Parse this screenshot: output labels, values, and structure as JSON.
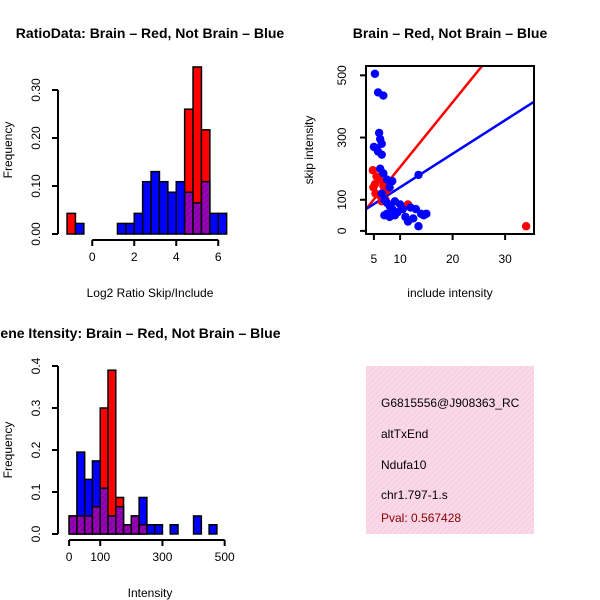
{
  "colors": {
    "brain": "#ff0000",
    "not_brain": "#0000ff",
    "overlap": "#9a00b8",
    "overlap_hatch": "#6a0090",
    "axis": "#000000",
    "info_bg": "#fad8e8",
    "pval": "#8b0000"
  },
  "chart_data": [
    {
      "id": "ratio-hist",
      "type": "bar",
      "title": "RatioData: Brain – Red, Not Brain – Blue",
      "xlabel": "Log2 Ratio Skip/Include",
      "ylabel": "Frequency",
      "xlim": [
        -1.25,
        6.75
      ],
      "ylim": [
        0,
        0.35
      ],
      "xticks": [
        0,
        2,
        4,
        6
      ],
      "yticks": [
        0.0,
        0.1,
        0.2,
        0.3
      ],
      "ytick_labels": [
        "0.00",
        "0.10",
        "0.20",
        "0.30"
      ],
      "bin_width": 0.4,
      "bin_starts": [
        -1.2,
        -0.8,
        -0.4,
        0.0,
        0.4,
        0.8,
        1.2,
        1.6,
        2.0,
        2.4,
        2.8,
        3.2,
        3.6,
        4.0,
        4.4,
        4.8,
        5.2,
        5.6,
        6.0,
        6.4
      ],
      "series": [
        {
          "name": "Brain",
          "color": "red",
          "values": [
            0.043,
            0,
            0,
            0,
            0,
            0,
            0,
            0,
            0,
            0,
            0,
            0,
            0,
            0,
            0.26,
            0.348,
            0.217,
            0,
            0,
            0
          ]
        },
        {
          "name": "Not Brain",
          "color": "blue",
          "values": [
            0,
            0.022,
            0,
            0,
            0,
            0,
            0.022,
            0.022,
            0.043,
            0.109,
            0.13,
            0.109,
            0.087,
            0.109,
            0.087,
            0.065,
            0.109,
            0.043,
            0.043,
            0
          ]
        }
      ]
    },
    {
      "id": "intensity-scatter",
      "type": "scatter",
      "title": "Brain – Red, Not Brain – Blue",
      "xlabel": "include intensity",
      "ylabel": "skip intensity",
      "xlim": [
        3.5,
        35.5
      ],
      "ylim": [
        -10,
        530
      ],
      "xticks": [
        5,
        10,
        20,
        30
      ],
      "yticks": [
        0,
        100,
        300,
        500
      ],
      "series": [
        {
          "name": "Brain",
          "color": "red",
          "points": [
            [
              4.8,
              195
            ],
            [
              4.9,
              140
            ],
            [
              5.2,
              150
            ],
            [
              5.5,
              175
            ],
            [
              5.3,
              120
            ],
            [
              6.0,
              165
            ],
            [
              6.3,
              110
            ],
            [
              6.8,
              145
            ],
            [
              7.0,
              150
            ],
            [
              7.5,
              130
            ],
            [
              6.5,
              95
            ],
            [
              7.2,
              100
            ],
            [
              11.5,
              85
            ],
            [
              34.0,
              15
            ]
          ]
        },
        {
          "name": "Not Brain",
          "color": "blue",
          "points": [
            [
              5.2,
              505
            ],
            [
              5.8,
              445
            ],
            [
              6.8,
              435
            ],
            [
              5.0,
              270
            ],
            [
              5.5,
              265
            ],
            [
              6.0,
              315
            ],
            [
              6.2,
              295
            ],
            [
              6.5,
              280
            ],
            [
              5.8,
              255
            ],
            [
              6.5,
              245
            ],
            [
              6.2,
              200
            ],
            [
              6.8,
              185
            ],
            [
              7.5,
              165
            ],
            [
              8.0,
              140
            ],
            [
              8.5,
              160
            ],
            [
              6.5,
              120
            ],
            [
              7.0,
              100
            ],
            [
              7.5,
              90
            ],
            [
              8.0,
              80
            ],
            [
              8.5,
              70
            ],
            [
              9.0,
              95
            ],
            [
              9.5,
              60
            ],
            [
              10.0,
              85
            ],
            [
              10.5,
              70
            ],
            [
              11.0,
              45
            ],
            [
              11.5,
              30
            ],
            [
              7.0,
              50
            ],
            [
              7.5,
              55
            ],
            [
              8.0,
              45
            ],
            [
              9.0,
              50
            ],
            [
              12.0,
              75
            ],
            [
              13.5,
              180
            ],
            [
              13.0,
              70
            ],
            [
              14.0,
              55
            ],
            [
              14.5,
              50
            ],
            [
              13.5,
              15
            ],
            [
              15.0,
              55
            ],
            [
              12.5,
              40
            ]
          ]
        }
      ],
      "lines": [
        {
          "name": "Brain fit",
          "color": "red",
          "x": [
            3.5,
            25.6
          ],
          "y": [
            70,
            530
          ]
        },
        {
          "name": "Not Brain fit",
          "color": "blue",
          "x": [
            3.5,
            35.5
          ],
          "y": [
            70,
            415
          ]
        }
      ]
    },
    {
      "id": "intensity-hist",
      "type": "bar",
      "title": "Gene Itensity: Brain – Red, Not Brain – Blue",
      "xlabel": "Intensity",
      "ylabel": "Frequency",
      "xlim": [
        -10,
        530
      ],
      "ylim": [
        0,
        0.4
      ],
      "xticks": [
        0,
        100,
        300,
        500
      ],
      "yticks": [
        0.0,
        0.1,
        0.2,
        0.3,
        0.4
      ],
      "ytick_labels": [
        "0.0",
        "0.1",
        "0.2",
        "0.3",
        "0.4"
      ],
      "bin_width": 25,
      "bin_starts": [
        0,
        25,
        50,
        75,
        100,
        125,
        150,
        175,
        200,
        225,
        250,
        275,
        300,
        325,
        350,
        375,
        400,
        425,
        450,
        475
      ],
      "series": [
        {
          "name": "Brain",
          "color": "red",
          "values": [
            0.043,
            0.043,
            0.043,
            0.065,
            0.3,
            0.39,
            0.087,
            0.022,
            0.043,
            0.022,
            0,
            0,
            0,
            0,
            0,
            0,
            0,
            0,
            0,
            0
          ]
        },
        {
          "name": "Not Brain",
          "color": "blue",
          "values": [
            0.043,
            0.195,
            0.13,
            0.174,
            0.109,
            0.043,
            0.065,
            0.022,
            0.043,
            0.087,
            0.022,
            0.022,
            0,
            0.022,
            0,
            0,
            0.043,
            0,
            0.022,
            0
          ]
        }
      ]
    }
  ],
  "info_box": {
    "id": "G6815556@J908363_RC",
    "event_type": "altTxEnd",
    "gene": "Ndufa10",
    "location": "chr1.797-1.s",
    "pval_label": "Pval: 0.567428"
  }
}
